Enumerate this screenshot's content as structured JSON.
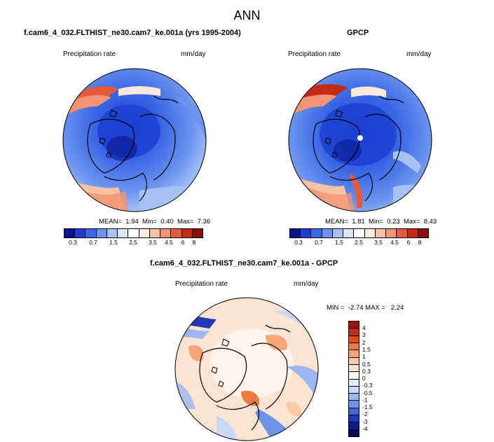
{
  "main_title": "ANN",
  "panel_left": {
    "title": "f.cam6_4_032.FLTHIST_ne30.cam7_ke.001a (yrs 1995-2004)",
    "variable": "Precipitation rate",
    "units": "mm/day",
    "stats": "MEAN=  1.94  Min=  0.40  Max=  7.36",
    "colorbar_ticks": [
      "0.3",
      "0.7",
      "1.5",
      "2.5",
      "3.5",
      "4.5",
      "6",
      "8"
    ]
  },
  "panel_right": {
    "title": "GPCP",
    "variable": "Precipitation rate",
    "units": "mm/day",
    "stats": "MEAN=  1.81  Min=  0.23  Max=  8.43",
    "colorbar_ticks": [
      "0.3",
      "0.7",
      "1.5",
      "2.5",
      "3.5",
      "4.5",
      "6",
      "8"
    ]
  },
  "panel_diff": {
    "title": "f.cam6_4_032.FLTHIST_ne30.cam7_ke.001a - GPCP",
    "variable": "Precipitation rate",
    "units": "mm/day",
    "stats": "MIN =  -2.74 MAX =   2.24",
    "colorbar_ticks": [
      "4",
      "3",
      "2",
      "1.5",
      "1",
      "0.5",
      "0.3",
      "0",
      "-0.3",
      "-0.5",
      "-1",
      "-1.5",
      "-2",
      "-3",
      "-4"
    ]
  },
  "colors": {
    "sequential": [
      "#08158a",
      "#1c3fd0",
      "#3a68e6",
      "#6c94ee",
      "#a6c2f4",
      "#d8e6fa",
      "#fbeadc",
      "#f7c2a3",
      "#f29373",
      "#e55a38",
      "#c42b14",
      "#8a0f08"
    ],
    "diverging": [
      "#a01010",
      "#c42b14",
      "#e04a1e",
      "#f07a45",
      "#f7a679",
      "#fbc9a6",
      "#fde4d2",
      "#fef4ec",
      "#e3ecfb",
      "#c8d8f5",
      "#9ab8ef",
      "#6d94e6",
      "#3f65d6",
      "#2037b8",
      "#0b1a8c",
      "#050b5c"
    ]
  }
}
